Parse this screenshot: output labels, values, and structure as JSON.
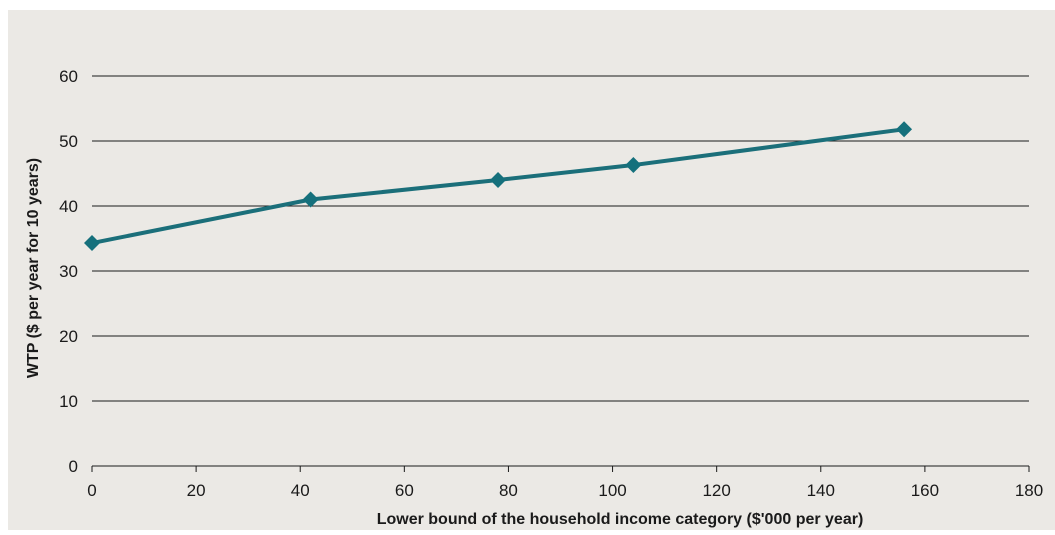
{
  "chart_data": {
    "type": "line",
    "title": "",
    "xlabel": "Lower bound of the household income category ($'000 per year)",
    "ylabel": "WTP ($ per year for 10 years)",
    "xlim": [
      0,
      180
    ],
    "ylim": [
      0,
      60
    ],
    "x_ticks": [
      0,
      20,
      40,
      60,
      80,
      100,
      120,
      140,
      160,
      180
    ],
    "y_ticks": [
      0,
      10,
      20,
      30,
      40,
      50,
      60
    ],
    "grid": "horizontal",
    "marker": "diamond",
    "series": [
      {
        "x": [
          0,
          42,
          78,
          104,
          156
        ],
        "values": [
          34.3,
          41.0,
          44.0,
          46.3,
          51.8
        ]
      }
    ],
    "colors": {
      "background": "#ebe9e5",
      "line": "#1b6f7a",
      "marker": "#15707c",
      "grid": "#1a1a1a",
      "text": "#1a1a1a"
    }
  }
}
